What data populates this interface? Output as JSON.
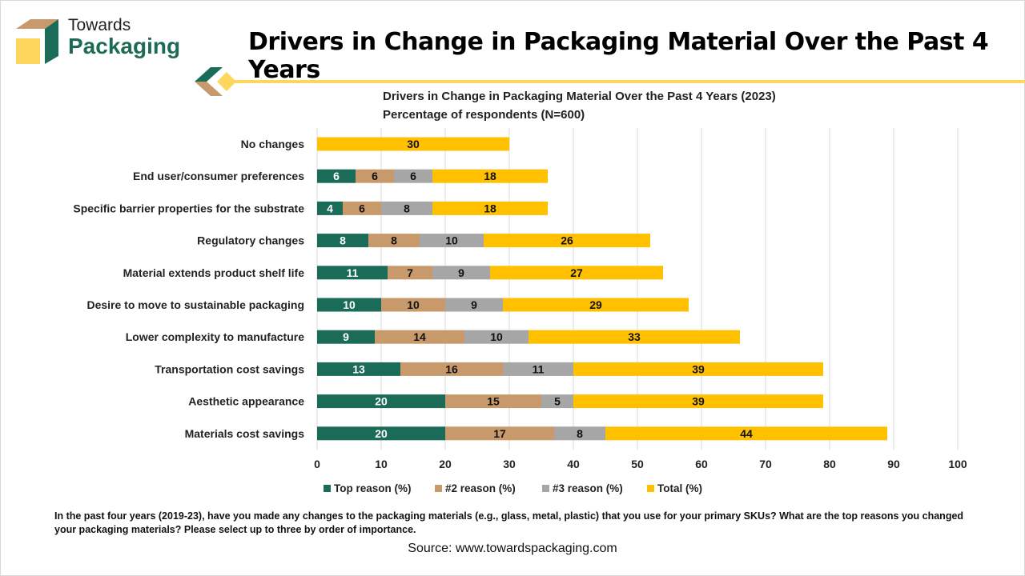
{
  "logo": {
    "line1": "Towards",
    "line2": "Packaging"
  },
  "page_title": "Drivers in Change in Packaging Material Over the Past 4 Years",
  "footnote": "In the past four years (2019-23), have you made any changes to the packaging materials (e.g., glass, metal, plastic) that you use for your primary SKUs? What are the top reasons you changed your packaging materials? Please select up to three by order of importance.",
  "source": "Source: www.towardspackaging.com",
  "chart_data": {
    "type": "bar",
    "orientation": "horizontal",
    "stacked": true,
    "title": "Drivers in Change in Packaging Material Over the Past 4 Years (2023)",
    "subtitle": "Percentage of respondents (N=600)",
    "categories": [
      "No changes",
      "End user/consumer preferences",
      "Specific barrier properties for the substrate",
      "Regulatory changes",
      "Material extends product shelf life",
      "Desire to move to sustainable packaging",
      "Lower complexity to manufacture",
      "Transportation cost savings",
      "Aesthetic appearance",
      "Materials cost savings"
    ],
    "series": [
      {
        "name": "Top reason (%)",
        "color": "#1a6b58",
        "label_color": "#ffffff",
        "values": [
          null,
          6,
          4,
          8,
          11,
          10,
          9,
          13,
          20,
          20
        ]
      },
      {
        "name": "#2 reason (%)",
        "color": "#c8996a",
        "label_color": "#111111",
        "values": [
          null,
          6,
          6,
          8,
          7,
          10,
          14,
          16,
          15,
          17
        ]
      },
      {
        "name": "#3 reason (%)",
        "color": "#a6a6a6",
        "label_color": "#111111",
        "values": [
          null,
          6,
          8,
          10,
          9,
          9,
          10,
          11,
          5,
          8
        ]
      },
      {
        "name": "Total (%)",
        "color": "#ffc000",
        "label_color": "#111111",
        "values": [
          30,
          18,
          18,
          26,
          27,
          29,
          33,
          39,
          39,
          44
        ]
      }
    ],
    "xlim": [
      0,
      100
    ],
    "xticks": [
      0,
      10,
      20,
      30,
      40,
      50,
      60,
      70,
      80,
      90,
      100
    ],
    "grid": true,
    "legend": "bottom"
  }
}
